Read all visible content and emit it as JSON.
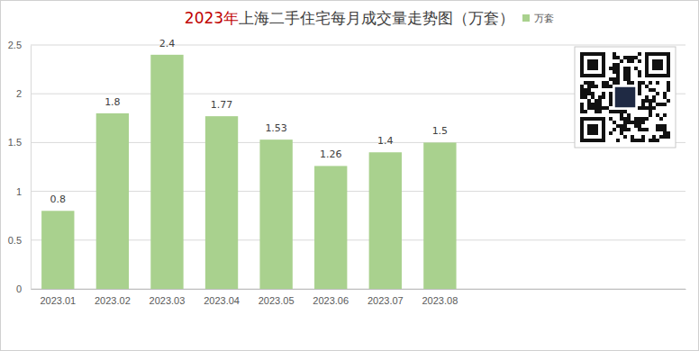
{
  "chart_data": {
    "type": "bar",
    "title": "2023年上海二手住宅每月成交量走势图（万套）",
    "categories": [
      "2023.01",
      "2023.02",
      "2023.03",
      "2023.04",
      "2023.05",
      "2023.06",
      "2023.07",
      "2023.08",
      null,
      null,
      null,
      null
    ],
    "series": [
      {
        "name": "万套",
        "color": "#a9d18e",
        "values": [
          0.8,
          1.8,
          2.4,
          1.77,
          1.53,
          1.26,
          1.4,
          1.5,
          null,
          null,
          null,
          null
        ]
      }
    ],
    "ylim": [
      0,
      2.5
    ],
    "yticks": [
      0,
      0.5,
      1,
      1.5,
      2,
      2.5
    ],
    "grid": true,
    "legend": "top-right",
    "data_labels": true
  }
}
